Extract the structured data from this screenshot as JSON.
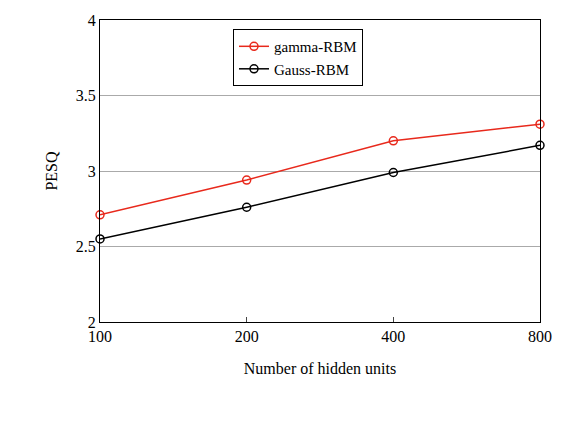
{
  "chart_data": {
    "type": "line",
    "x_label": "Number of hidden units",
    "y_label": "PESQ",
    "categories": [
      "100",
      "200",
      "400",
      "800"
    ],
    "series": [
      {
        "name": "gamma-RBM",
        "color": "#e8291c",
        "marker": "open-circle",
        "values": [
          2.71,
          2.94,
          3.2,
          3.31
        ]
      },
      {
        "name": "Gauss-RBM",
        "color": "#000000",
        "marker": "open-circle",
        "values": [
          2.55,
          2.76,
          2.99,
          3.17
        ]
      }
    ],
    "ylim": [
      2,
      4
    ],
    "yticks": [
      2,
      2.5,
      3,
      3.5,
      4
    ],
    "grid": true,
    "legend": "top"
  }
}
